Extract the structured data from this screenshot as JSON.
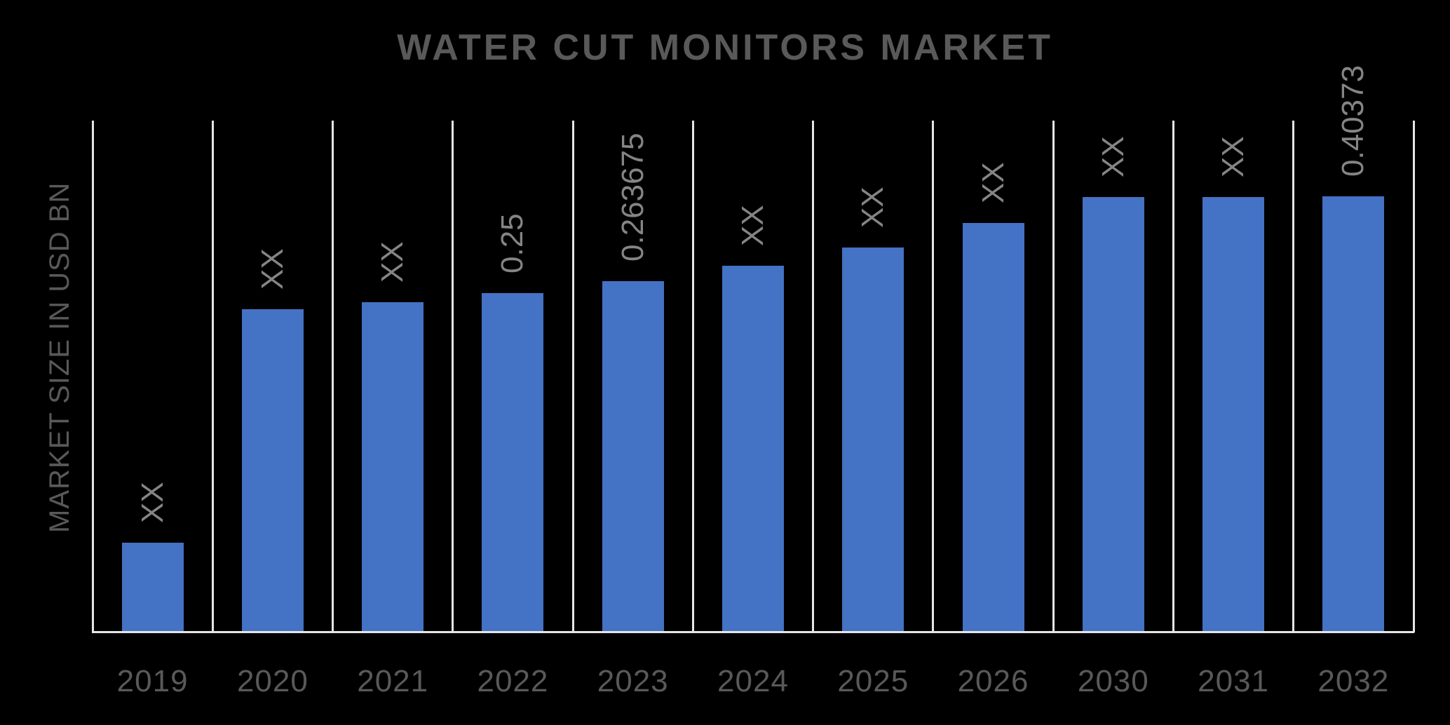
{
  "chart_data": {
    "type": "bar",
    "title": "WATER CUT MONITORS MARKET",
    "xlabel": "",
    "ylabel": "MARKET SIZE IN USD BN",
    "unit": "USD BN",
    "legend_position": "none",
    "grid": "vertical lines at category boundaries",
    "background_color": "#000000",
    "bar_color": "#4472C4",
    "grid_color": "#E6E6E6",
    "title_color": "#595959",
    "tick_color": "#595959",
    "data_label_color": "#858585",
    "data_label_rotation": "90deg counterclockwise",
    "categories": [
      "2019",
      "2020",
      "2021",
      "2022",
      "2023",
      "2024",
      "2025",
      "2026",
      "2030",
      "2031",
      "2032"
    ],
    "bar_labels": [
      "XX",
      "XX",
      "XX",
      "0.25",
      "0.263675",
      "XX",
      "XX",
      "XX",
      "XX",
      "XX",
      "0.40373"
    ],
    "values_usd_bn": [
      null,
      null,
      null,
      0.25,
      0.263675,
      null,
      null,
      null,
      null,
      null,
      0.40373
    ],
    "bar_height_fractions": [
      0.175,
      0.632,
      0.645,
      0.663,
      0.686,
      0.716,
      0.752,
      0.8,
      0.851,
      0.851,
      0.852
    ]
  }
}
